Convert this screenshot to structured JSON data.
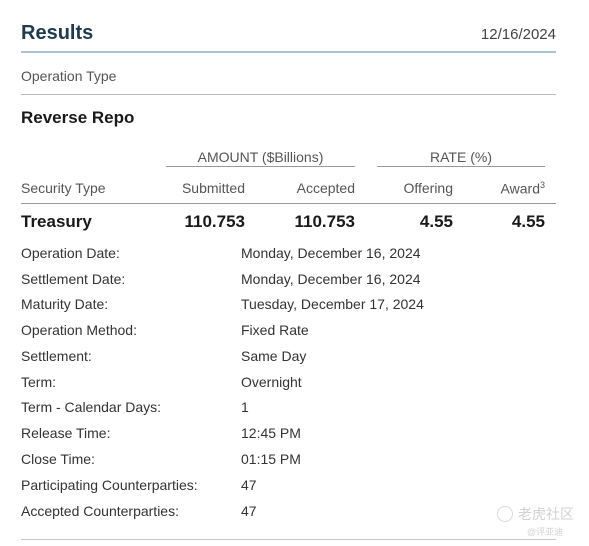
{
  "header": {
    "title": "Results",
    "date": "12/16/2024"
  },
  "operation_type_label": "Operation Type",
  "section_title": "Reverse Repo",
  "groups": {
    "amount": "AMOUNT ($Billions)",
    "rate": "RATE (%)"
  },
  "columns": {
    "security_type": "Security Type",
    "submitted": "Submitted",
    "accepted": "Accepted",
    "offering": "Offering",
    "award": "Award",
    "award_note": "3"
  },
  "row": {
    "security": "Treasury",
    "submitted": "110.753",
    "accepted": "110.753",
    "offering": "4.55",
    "award": "4.55"
  },
  "details": [
    {
      "label": "Operation Date:",
      "value": "Monday, December 16, 2024"
    },
    {
      "label": "Settlement Date:",
      "value": "Monday, December 16, 2024"
    },
    {
      "label": "Maturity Date:",
      "value": "Tuesday, December 17, 2024"
    },
    {
      "label": "Operation Method:",
      "value": "Fixed Rate"
    },
    {
      "label": "Settlement:",
      "value": "Same Day"
    },
    {
      "label": "Term:",
      "value": "Overnight"
    },
    {
      "label": "Term - Calendar Days:",
      "value": "1"
    },
    {
      "label": "Release Time:",
      "value": "12:45 PM"
    },
    {
      "label": "Close Time:",
      "value": "01:15 PM"
    },
    {
      "label": "Participating Counterparties:",
      "value": "47"
    },
    {
      "label": "Accepted Counterparties:",
      "value": "47"
    }
  ],
  "watermark": {
    "text": "老虎社区",
    "sub": "@评亚迪"
  }
}
